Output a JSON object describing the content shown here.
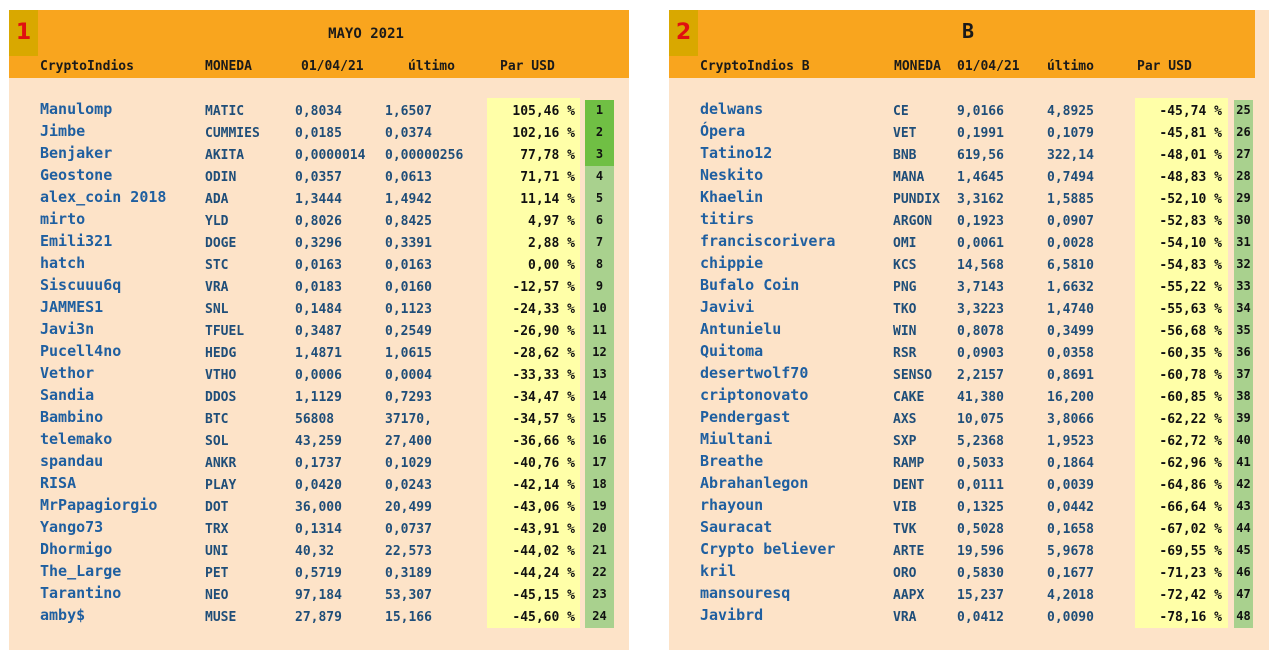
{
  "panels": [
    {
      "number": "1",
      "title": "MAYO 2021",
      "headers": [
        "CryptoIndios",
        "MONEDA",
        "01/04/21",
        "último",
        "Par USD"
      ],
      "rows": [
        [
          "Manulomp",
          "MATIC",
          "0,8034",
          "1,6507",
          "105,46 %",
          1
        ],
        [
          "Jimbe",
          "CUMMIES",
          "0,0185",
          "0,0374",
          "102,16 %",
          2
        ],
        [
          "Benjaker",
          "AKITA",
          "0,0000014",
          "0,00000256",
          "77,78 %",
          3
        ],
        [
          "Geostone",
          "ODIN",
          "0,0357",
          "0,0613",
          "71,71 %",
          4
        ],
        [
          "alex_coin 2018",
          "ADA",
          "1,3444",
          "1,4942",
          "11,14 %",
          5
        ],
        [
          "mirto",
          "YLD",
          "0,8026",
          "0,8425",
          "4,97 %",
          6
        ],
        [
          "Emili321",
          "DOGE",
          "0,3296",
          "0,3391",
          "2,88 %",
          7
        ],
        [
          "hatch",
          "STC",
          "0,0163",
          "0,0163",
          "0,00 %",
          8
        ],
        [
          "Siscuuu6q",
          "VRA",
          "0,0183",
          "0,0160",
          "-12,57 %",
          9
        ],
        [
          "JAMMES1",
          "SNL",
          "0,1484",
          "0,1123",
          "-24,33 %",
          10
        ],
        [
          "Javi3n",
          "TFUEL",
          "0,3487",
          "0,2549",
          "-26,90 %",
          11
        ],
        [
          "Pucell4no",
          "HEDG",
          "1,4871",
          "1,0615",
          "-28,62 %",
          12
        ],
        [
          "Vethor",
          "VTHO",
          "0,0006",
          "0,0004",
          "-33,33 %",
          13
        ],
        [
          "Sandia",
          "DDOS",
          "1,1129",
          "0,7293",
          "-34,47 %",
          14
        ],
        [
          "Bambino",
          "BTC",
          "56808",
          "37170,",
          "-34,57 %",
          15
        ],
        [
          "telemako",
          "SOL",
          "43,259",
          "27,400",
          "-36,66 %",
          16
        ],
        [
          "spandau",
          "ANKR",
          "0,1737",
          "0,1029",
          "-40,76 %",
          17
        ],
        [
          "RISA",
          "PLAY",
          "0,0420",
          "0,0243",
          "-42,14 %",
          18
        ],
        [
          "MrPapagiorgio",
          "DOT",
          "36,000",
          "20,499",
          "-43,06 %",
          19
        ],
        [
          "Yango73",
          "TRX",
          "0,1314",
          "0,0737",
          "-43,91 %",
          20
        ],
        [
          "Dhormigo",
          "UNI",
          "40,32",
          "22,573",
          "-44,02 %",
          21
        ],
        [
          "The_Large",
          "PET",
          "0,5719",
          "0,3189",
          "-44,24 %",
          22
        ],
        [
          "Tarantino",
          "NEO",
          "97,184",
          "53,307",
          "-45,15 %",
          23
        ],
        [
          "amby$",
          "MUSE",
          "27,879",
          "15,166",
          "-45,60 %",
          24
        ]
      ]
    },
    {
      "number": "2",
      "title": "B",
      "headers": [
        "CryptoIndios B",
        "MONEDA",
        "01/04/21",
        "último",
        "Par USD"
      ],
      "rows": [
        [
          "delwans",
          "CE",
          "9,0166",
          "4,8925",
          "-45,74 %",
          25
        ],
        [
          "Ópera",
          "VET",
          "0,1991",
          "0,1079",
          "-45,81 %",
          26
        ],
        [
          "Tatino12",
          "BNB",
          "619,56",
          "322,14",
          "-48,01 %",
          27
        ],
        [
          "Neskito",
          "MANA",
          "1,4645",
          "0,7494",
          "-48,83 %",
          28
        ],
        [
          "Khaelin",
          "PUNDIX",
          "3,3162",
          "1,5885",
          "-52,10 %",
          29
        ],
        [
          "titirs",
          "ARGON",
          "0,1923",
          "0,0907",
          "-52,83 %",
          30
        ],
        [
          "franciscorivera",
          "OMI",
          "0,0061",
          "0,0028",
          "-54,10 %",
          31
        ],
        [
          "chippie",
          "KCS",
          "14,568",
          "6,5810",
          "-54,83 %",
          32
        ],
        [
          "Bufalo Coin",
          "PNG",
          "3,7143",
          "1,6632",
          "-55,22 %",
          33
        ],
        [
          "Javivi",
          "TKO",
          "3,3223",
          "1,4740",
          "-55,63 %",
          34
        ],
        [
          "Antunielu",
          "WIN",
          "0,8078",
          "0,3499",
          "-56,68 %",
          35
        ],
        [
          "Quitoma",
          "RSR",
          "0,0903",
          "0,0358",
          "-60,35 %",
          36
        ],
        [
          "desertwolf70",
          "SENSO",
          "2,2157",
          "0,8691",
          "-60,78 %",
          37
        ],
        [
          "criptonovato",
          "CAKE",
          "41,380",
          "16,200",
          "-60,85 %",
          38
        ],
        [
          "Pendergast",
          "AXS",
          "10,075",
          "3,8066",
          "-62,22 %",
          39
        ],
        [
          "Miultani",
          "SXP",
          "5,2368",
          "1,9523",
          "-62,72 %",
          40
        ],
        [
          "Breathe",
          "RAMP",
          "0,5033",
          "0,1864",
          "-62,96 %",
          41
        ],
        [
          "Abrahanlegon",
          "DENT",
          "0,0111",
          "0,0039",
          "-64,86 %",
          42
        ],
        [
          "rhayoun",
          "VIB",
          "0,1325",
          "0,0442",
          "-66,64 %",
          43
        ],
        [
          "Sauracat",
          "TVK",
          "0,5028",
          "0,1658",
          "-67,02 %",
          44
        ],
        [
          "Crypto believer",
          "ARTE",
          "19,596",
          "5,9678",
          "-69,55 %",
          45
        ],
        [
          "kril",
          "ORO",
          "0,5830",
          "0,1677",
          "-71,23 %",
          46
        ],
        [
          "mansouresq",
          "AAPX",
          "15,237",
          "4,2018",
          "-72,42 %",
          47
        ],
        [
          "Javibrd",
          "VRA",
          "0,0412",
          "0,0090",
          "-78,16 %",
          48
        ]
      ]
    }
  ]
}
